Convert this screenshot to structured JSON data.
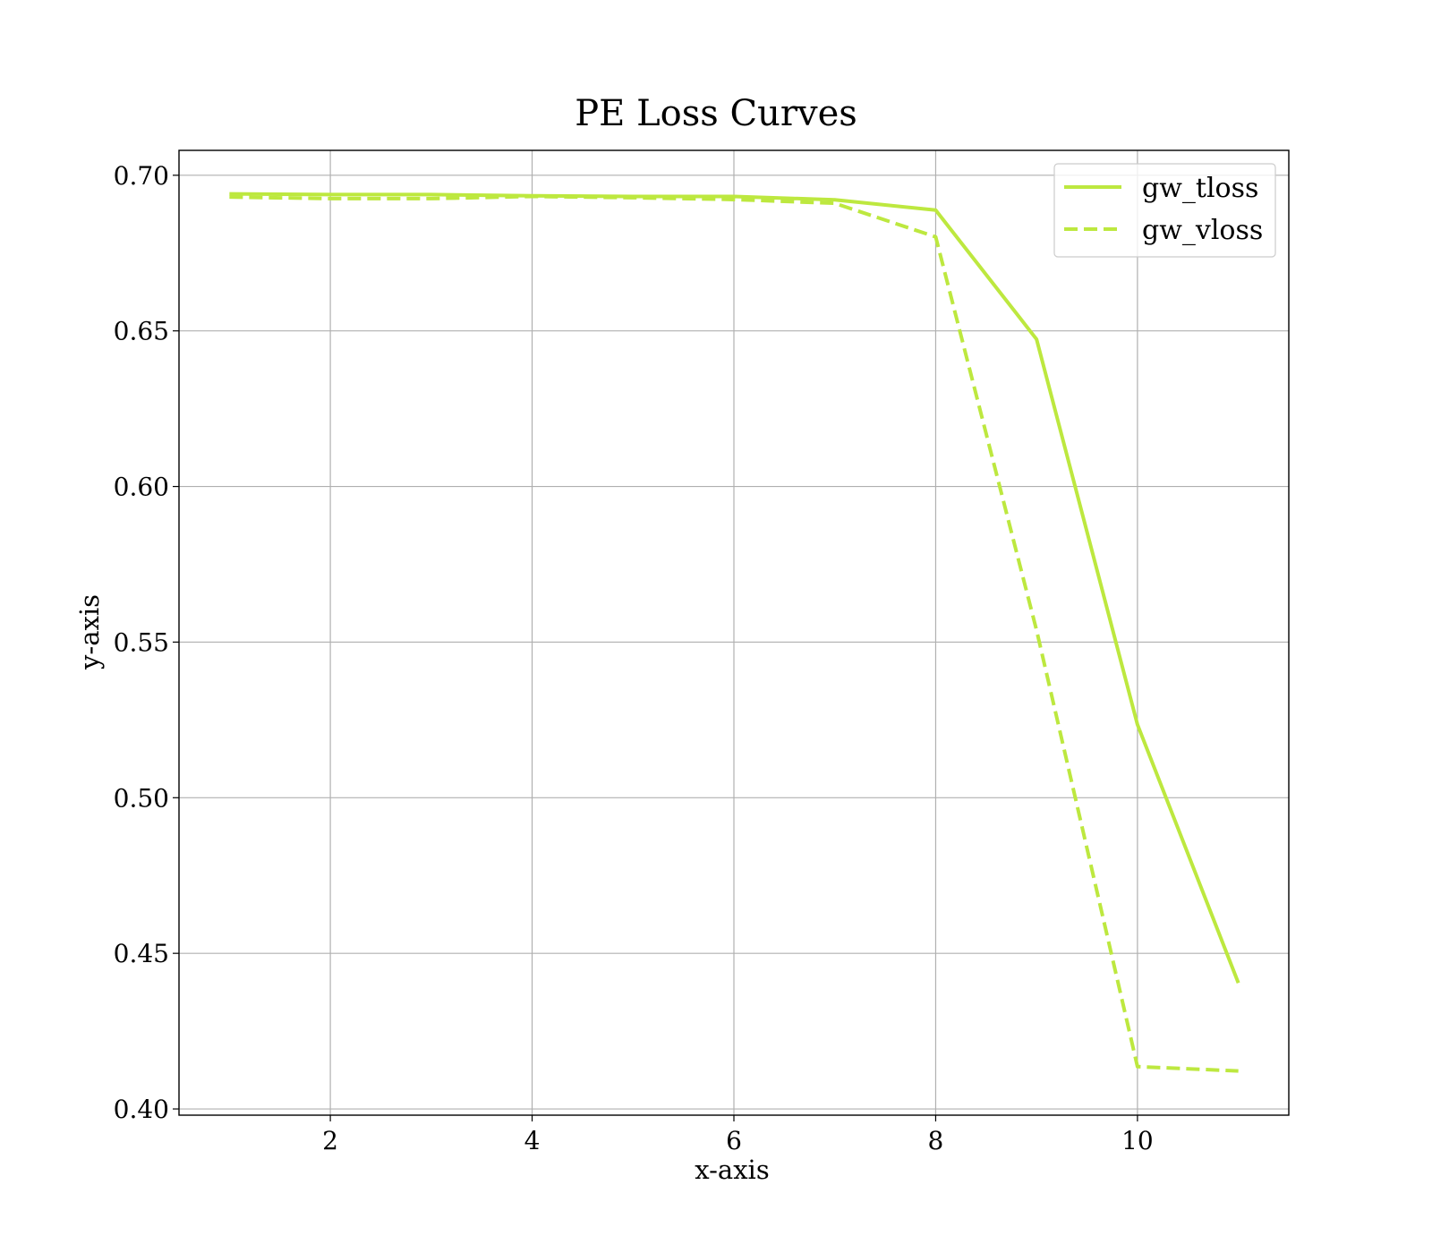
{
  "chart_data": {
    "type": "line",
    "title": "PE Loss Curves",
    "xlabel": "x-axis",
    "ylabel": "y-axis",
    "x": [
      1,
      2,
      3,
      4,
      5,
      6,
      7,
      8,
      9,
      10,
      11
    ],
    "xlim": [
      0.5,
      11.5
    ],
    "ylim": [
      0.398,
      0.708
    ],
    "xticks": [
      2,
      4,
      6,
      8,
      10
    ],
    "xtick_labels": [
      "2",
      "4",
      "6",
      "8",
      "10"
    ],
    "yticks": [
      0.4,
      0.45,
      0.5,
      0.55,
      0.6,
      0.65,
      0.7
    ],
    "ytick_labels": [
      "0.40",
      "0.45",
      "0.50",
      "0.55",
      "0.60",
      "0.65",
      "0.70"
    ],
    "grid": true,
    "legend_position": "top-right",
    "series": [
      {
        "name": "gw_tloss",
        "style": "solid",
        "color": "#bde83f",
        "values": [
          0.694,
          0.6938,
          0.6938,
          0.6934,
          0.6932,
          0.6932,
          0.6921,
          0.6888,
          0.6473,
          0.5235,
          0.4405
        ]
      },
      {
        "name": "gw_vloss",
        "style": "dashed",
        "color": "#bde83f",
        "values": [
          0.693,
          0.6925,
          0.6925,
          0.6932,
          0.6928,
          0.6922,
          0.691,
          0.6802,
          0.5538,
          0.4136,
          0.4122
        ]
      }
    ]
  }
}
